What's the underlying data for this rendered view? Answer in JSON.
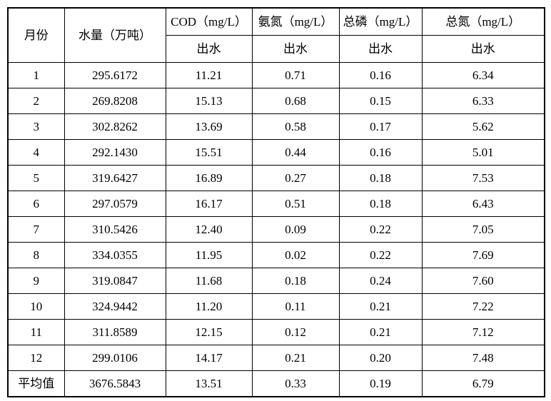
{
  "table": {
    "headers": {
      "month": "月份",
      "water": "水量（万吨）",
      "cod": "COD（mg/L）",
      "nh3n": "氨氮（mg/L）",
      "tp": "总磷（mg/L）",
      "tn": "总氮（mg/L）",
      "sub": "出水"
    },
    "rows": [
      {
        "month": "1",
        "water": "295.6172",
        "cod": "11.21",
        "nh3n": "0.71",
        "tp": "0.16",
        "tn": "6.34"
      },
      {
        "month": "2",
        "water": "269.8208",
        "cod": "15.13",
        "nh3n": "0.68",
        "tp": "0.15",
        "tn": "6.33"
      },
      {
        "month": "3",
        "water": "302.8262",
        "cod": "13.69",
        "nh3n": "0.58",
        "tp": "0.17",
        "tn": "5.62"
      },
      {
        "month": "4",
        "water": "292.1430",
        "cod": "15.51",
        "nh3n": "0.44",
        "tp": "0.16",
        "tn": "5.01"
      },
      {
        "month": "5",
        "water": "319.6427",
        "cod": "16.89",
        "nh3n": "0.27",
        "tp": "0.18",
        "tn": "7.53"
      },
      {
        "month": "6",
        "water": "297.0579",
        "cod": "16.17",
        "nh3n": "0.51",
        "tp": "0.18",
        "tn": "6.43"
      },
      {
        "month": "7",
        "water": "310.5426",
        "cod": "12.40",
        "nh3n": "0.09",
        "tp": "0.22",
        "tn": "7.05"
      },
      {
        "month": "8",
        "water": "334.0355",
        "cod": "11.95",
        "nh3n": "0.02",
        "tp": "0.22",
        "tn": "7.69"
      },
      {
        "month": "9",
        "water": "319.0847",
        "cod": "11.68",
        "nh3n": "0.18",
        "tp": "0.24",
        "tn": "7.60"
      },
      {
        "month": "10",
        "water": "324.9442",
        "cod": "11.20",
        "nh3n": "0.11",
        "tp": "0.21",
        "tn": "7.22"
      },
      {
        "month": "11",
        "water": "311.8589",
        "cod": "12.15",
        "nh3n": "0.12",
        "tp": "0.21",
        "tn": "7.12"
      },
      {
        "month": "12",
        "water": "299.0106",
        "cod": "14.17",
        "nh3n": "0.21",
        "tp": "0.20",
        "tn": "7.48"
      },
      {
        "month": "平均值",
        "water": "3676.5843",
        "cod": "13.51",
        "nh3n": "0.33",
        "tp": "0.19",
        "tn": "6.79"
      }
    ]
  }
}
